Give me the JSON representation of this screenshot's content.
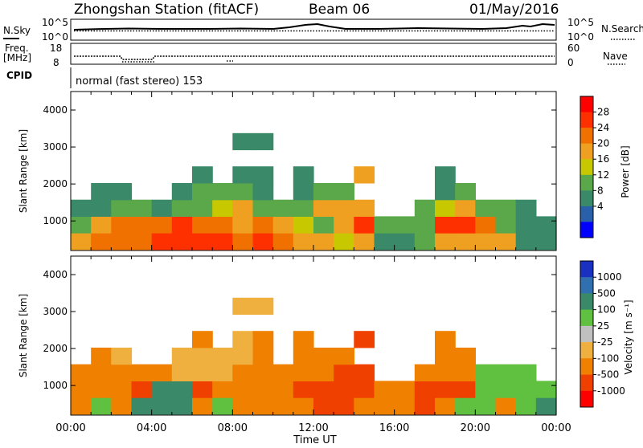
{
  "header": {
    "title": "Zhongshan Station (fitACF)",
    "beam": "Beam 06",
    "date": "01/May/2016"
  },
  "noise_panel": {
    "left_label": "N.Sky",
    "left_ticks": [
      "10^5",
      "10^0"
    ],
    "right_ticks": [
      "10^5",
      "10^0"
    ],
    "right_label": "N.Search"
  },
  "freq_panel": {
    "left_label_1": "Freq.",
    "left_label_2": "[MHz]",
    "left_ticks": [
      "18",
      "8"
    ],
    "right_ticks": [
      "60",
      "0"
    ],
    "right_label": "Nave"
  },
  "cpid_panel": {
    "label": "CPID",
    "text": "normal (fast stereo) 153"
  },
  "power_panel": {
    "ylabel": "Slant Range [km]",
    "yticks": [
      "4000",
      "3000",
      "2000",
      "1000"
    ],
    "colorbar_label": "Power [dB]",
    "colorbar_ticks": [
      "28",
      "24",
      "20",
      "16",
      "12",
      "8",
      "4"
    ]
  },
  "velocity_panel": {
    "ylabel": "Slant Range [km]",
    "yticks": [
      "4000",
      "3000",
      "2000",
      "1000"
    ],
    "colorbar_label": "Velocity [m s⁻¹]",
    "colorbar_ticks": [
      "1000",
      "500",
      "100",
      "25",
      "-25",
      "-100",
      "-500",
      "-1000"
    ]
  },
  "time_axis": {
    "ticks": [
      "00:00",
      "04:00",
      "08:00",
      "12:00",
      "16:00",
      "20:00",
      "00:00"
    ],
    "label": "Time UT"
  },
  "colors": {
    "power_scale": [
      "#0000ff",
      "#2a5faa",
      "#3a8a6a",
      "#5aa84a",
      "#c8c800",
      "#f0a020",
      "#f07000",
      "#ff3000",
      "#ff0000"
    ],
    "velocity_scale": [
      "#ff0000",
      "#f04000",
      "#f08000",
      "#f0b040",
      "#c0c0c0",
      "#60c040",
      "#3a8a6a",
      "#3070b0",
      "#1a30c0"
    ]
  },
  "chart_data": [
    {
      "type": "heatmap",
      "title": "Power",
      "xlabel": "Time UT",
      "ylabel": "Slant Range [km]",
      "xlim": [
        0,
        24
      ],
      "ylim": [
        200,
        4500
      ],
      "colorbar": {
        "label": "Power [dB]",
        "range": [
          0,
          32
        ],
        "ticks": [
          4,
          8,
          12,
          16,
          20,
          24,
          28
        ]
      },
      "x": [
        0,
        1,
        2,
        3,
        4,
        5,
        6,
        7,
        8,
        9,
        10,
        11,
        12,
        13,
        14,
        15,
        16,
        17,
        18,
        19,
        20,
        21,
        22,
        23
      ],
      "y": [
        450,
        900,
        1350,
        1800,
        2250,
        2700,
        3150
      ],
      "values": [
        [
          18,
          22,
          24,
          24,
          26,
          28,
          28,
          26,
          24,
          26,
          22,
          20,
          18,
          16,
          18,
          10,
          10,
          14,
          20,
          18,
          20,
          18,
          10,
          8
        ],
        [
          14,
          20,
          22,
          22,
          24,
          26,
          24,
          22,
          20,
          22,
          18,
          16,
          14,
          20,
          26,
          12,
          12,
          14,
          26,
          28,
          24,
          14,
          10,
          8
        ],
        [
          10,
          8,
          14,
          14,
          10,
          12,
          14,
          16,
          18,
          14,
          12,
          14,
          18,
          18,
          20,
          0,
          0,
          12,
          16,
          18,
          14,
          12,
          8,
          0
        ],
        [
          0,
          8,
          8,
          0,
          0,
          10,
          12,
          14,
          12,
          10,
          0,
          10,
          12,
          14,
          0,
          0,
          0,
          0,
          10,
          12,
          0,
          0,
          0,
          0
        ],
        [
          0,
          0,
          0,
          0,
          0,
          0,
          10,
          0,
          10,
          10,
          0,
          10,
          0,
          0,
          18,
          0,
          0,
          0,
          10,
          0,
          0,
          0,
          0,
          0
        ],
        [
          0,
          0,
          0,
          0,
          0,
          0,
          0,
          0,
          0,
          0,
          0,
          0,
          0,
          0,
          0,
          0,
          0,
          0,
          0,
          0,
          0,
          0,
          0,
          0
        ],
        [
          0,
          0,
          0,
          0,
          0,
          0,
          0,
          0,
          8,
          8,
          0,
          0,
          0,
          0,
          0,
          0,
          0,
          0,
          0,
          0,
          0,
          0,
          0,
          0
        ]
      ]
    },
    {
      "type": "heatmap",
      "title": "Velocity",
      "xlabel": "Time UT",
      "ylabel": "Slant Range [km]",
      "xlim": [
        0,
        24
      ],
      "ylim": [
        200,
        4500
      ],
      "colorbar": {
        "label": "Velocity [m s⁻¹]",
        "ticks": [
          1000,
          500,
          100,
          25,
          -25,
          -100,
          -500,
          -1000
        ]
      },
      "x": [
        0,
        1,
        2,
        3,
        4,
        5,
        6,
        7,
        8,
        9,
        10,
        11,
        12,
        13,
        14,
        15,
        16,
        17,
        18,
        19,
        20,
        21,
        22,
        23
      ],
      "y": [
        450,
        900,
        1350,
        1800,
        2250,
        2700,
        3150
      ],
      "values": [
        [
          -100,
          100,
          -100,
          500,
          500,
          500,
          -100,
          100,
          -100,
          -100,
          -100,
          -100,
          -500,
          -500,
          -100,
          -100,
          -100,
          -500,
          -100,
          100,
          100,
          -100,
          100,
          500
        ],
        [
          -100,
          -100,
          -100,
          -500,
          500,
          500,
          -500,
          -100,
          -100,
          -100,
          -100,
          -500,
          -500,
          -500,
          -500,
          -100,
          -100,
          -500,
          -500,
          -500,
          100,
          100,
          100,
          100
        ],
        [
          -100,
          -100,
          -100,
          -100,
          -100,
          -25,
          -25,
          -25,
          -100,
          -100,
          -100,
          -100,
          -100,
          -500,
          -500,
          0,
          0,
          -100,
          -100,
          -100,
          100,
          100,
          100,
          0
        ],
        [
          0,
          -100,
          -25,
          0,
          0,
          -25,
          -25,
          -25,
          -25,
          -100,
          0,
          -100,
          -100,
          -100,
          0,
          0,
          0,
          0,
          -100,
          -100,
          0,
          0,
          0,
          0
        ],
        [
          0,
          0,
          0,
          0,
          0,
          0,
          -100,
          0,
          -25,
          -100,
          0,
          -100,
          0,
          0,
          -500,
          0,
          0,
          0,
          -100,
          0,
          0,
          0,
          0,
          0
        ],
        [
          0,
          0,
          0,
          0,
          0,
          0,
          0,
          0,
          0,
          0,
          0,
          0,
          0,
          0,
          0,
          0,
          0,
          0,
          0,
          0,
          0,
          0,
          0,
          0
        ],
        [
          0,
          0,
          0,
          0,
          0,
          0,
          0,
          0,
          -25,
          -25,
          0,
          0,
          0,
          0,
          0,
          0,
          0,
          0,
          0,
          0,
          0,
          0,
          0,
          0
        ]
      ]
    }
  ]
}
